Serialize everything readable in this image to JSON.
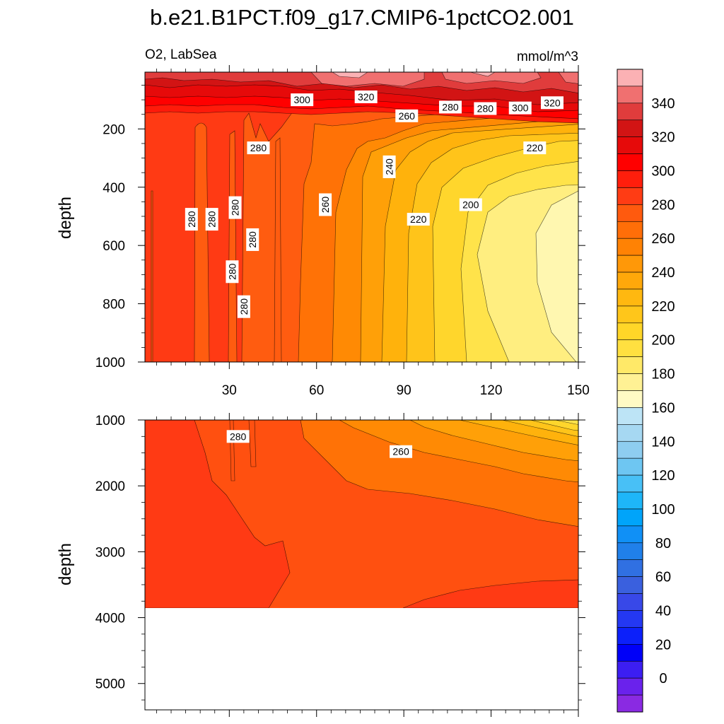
{
  "chart_data": [
    {
      "type": "heatmap",
      "panel": "upper",
      "title": "b.e21.B1PCT.f09_g17.CMIP6-1pctCO2.001",
      "left_subtitle": "O2, LabSea",
      "right_subtitle": "mmol/m^3",
      "xlabel": "",
      "ylabel": "depth",
      "xlim": [
        1,
        150
      ],
      "ylim": [
        1000,
        5
      ],
      "x_ticks": [
        30,
        60,
        90,
        120,
        150
      ],
      "y_ticks": [
        200,
        400,
        600,
        800,
        1000
      ],
      "contour_labels": [
        {
          "text": "300",
          "x": 55,
          "y": 100
        },
        {
          "text": "320",
          "x": 77,
          "y": 90
        },
        {
          "text": "260",
          "x": 91,
          "y": 155
        },
        {
          "text": "280",
          "x": 106,
          "y": 125
        },
        {
          "text": "280",
          "x": 118,
          "y": 130
        },
        {
          "text": "300",
          "x": 130,
          "y": 128
        },
        {
          "text": "320",
          "x": 141,
          "y": 110
        },
        {
          "text": "220",
          "x": 135,
          "y": 265
        },
        {
          "text": "280",
          "x": 40,
          "y": 265
        },
        {
          "text": "240",
          "x": 85,
          "y": 330
        },
        {
          "text": "260",
          "x": 63,
          "y": 460
        },
        {
          "text": "200",
          "x": 113,
          "y": 460
        },
        {
          "text": "280",
          "x": 17,
          "y": 510
        },
        {
          "text": "280",
          "x": 24,
          "y": 510
        },
        {
          "text": "280",
          "x": 32,
          "y": 470
        },
        {
          "text": "280",
          "x": 38,
          "y": 580
        },
        {
          "text": "220",
          "x": 95,
          "y": 510
        },
        {
          "text": "280",
          "x": 31,
          "y": 690
        },
        {
          "text": "280",
          "x": 35,
          "y": 810
        }
      ]
    },
    {
      "type": "heatmap",
      "panel": "lower",
      "xlabel": "",
      "ylabel": "depth",
      "xlim": [
        1,
        150
      ],
      "ylim": [
        5400,
        1000
      ],
      "x_ticks": [
        30,
        60,
        90,
        120,
        150
      ],
      "y_ticks": [
        1000,
        2000,
        3000,
        4000,
        5000
      ],
      "contour_labels": [
        {
          "text": "280",
          "x": 33,
          "y": 1250
        },
        {
          "text": "260",
          "x": 89,
          "y": 1480
        }
      ]
    }
  ],
  "colorbar": {
    "labels": [
      "340",
      "320",
      "300",
      "280",
      "260",
      "240",
      "220",
      "200",
      "180",
      "160",
      "140",
      "120",
      "100",
      "80",
      "60",
      "40",
      "20",
      "0"
    ],
    "colors": [
      "#fbb1b4",
      "#f07070",
      "#e03c3c",
      "#d21414",
      "#e60a0a",
      "#ff0000",
      "#ff1e0c",
      "#ff3c14",
      "#ff5a0e",
      "#ff6e08",
      "#ff8204",
      "#ff9808",
      "#ffa80a",
      "#ffb810",
      "#ffc61a",
      "#ffd628",
      "#ffe040",
      "#ffe968",
      "#fff194",
      "#fffac4",
      "#bde4f6",
      "#a6d8f2",
      "#8ecdf0",
      "#6ec6f2",
      "#48c0f6",
      "#1eb6f8",
      "#00a4fa",
      "#1090f6",
      "#2080ea",
      "#3070e2",
      "#3a60de",
      "#3848e8",
      "#2438f2",
      "#0c20fa",
      "#0000f8",
      "#3c1ef2",
      "#6a22ec",
      "#8a2ae2"
    ]
  }
}
